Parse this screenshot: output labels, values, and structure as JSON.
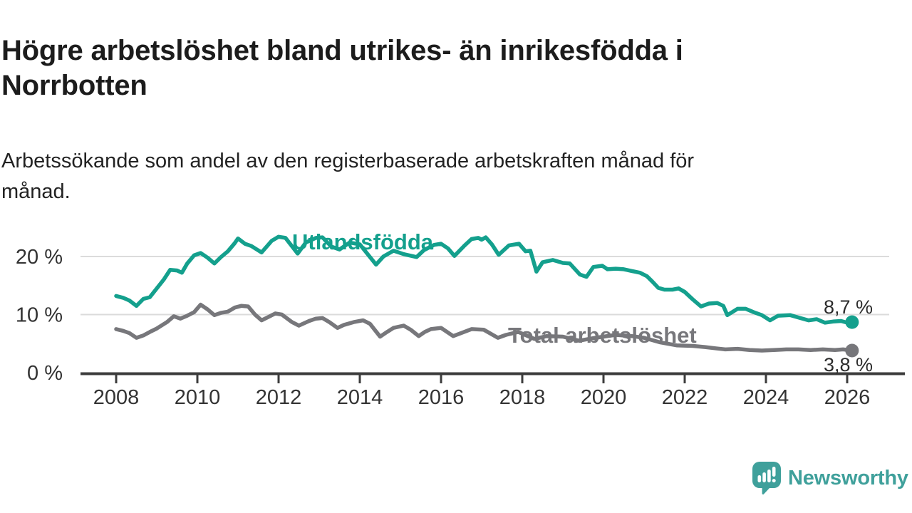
{
  "header": {
    "title": "Högre arbetslöshet bland utrikes- än inrikesfödda i Norrbotten",
    "title_lines": [
      "Högre arbetslöshet bland utrikes- än inrikesfödda i",
      "Norrbotten"
    ],
    "subtitle": "Arbetssökande som andel av den registerbaserade arbetskraften månad för månad.",
    "subtitle_lines": [
      "Arbetssökande som andel av den registerbaserade arbetskraften månad för",
      "månad."
    ]
  },
  "footer": {
    "brand": "Newsworthy",
    "logo_icon": "speech-bubble-bar-chart-icon",
    "brand_color": "#3FA09B"
  },
  "colors": {
    "utlandsfodda": "#14A08D",
    "total": "#77777B",
    "grid": "#DBDBDB",
    "axis": "#3C3C3C",
    "tick_text": "#333333",
    "value_label": "#2B2B2B",
    "background": "#FFFFFF"
  },
  "chart_data": {
    "type": "line",
    "title": "Högre arbetslöshet bland utrikes- än inrikesfödda i Norrbotten",
    "xlabel": "",
    "ylabel": "",
    "x_unit": "year (monthly observations)",
    "y_unit": "percent of registered labour force",
    "x_range": [
      2008,
      2026.3
    ],
    "ylim": [
      0,
      25
    ],
    "grid": "horizontal-only",
    "legend_position": "inline-on-line",
    "x_ticks": {
      "values": [
        2008,
        2010,
        2012,
        2014,
        2016,
        2018,
        2020,
        2022,
        2024,
        2026
      ],
      "labels": [
        "2008",
        "2010",
        "2012",
        "2014",
        "2016",
        "2018",
        "2020",
        "2022",
        "2024",
        "2026"
      ]
    },
    "y_ticks": {
      "values": [
        0,
        10,
        20
      ],
      "labels": [
        "0 %",
        "10 %",
        "20 %"
      ]
    },
    "grid_values": [
      10,
      20
    ],
    "series": [
      {
        "name": "Utlandsfödda",
        "color": "#14A08D",
        "end_value": 8.7,
        "end_label": "8,7 %",
        "points": [
          [
            2008.0,
            13.2
          ],
          [
            2008.17,
            12.9
          ],
          [
            2008.33,
            12.4
          ],
          [
            2008.5,
            11.5
          ],
          [
            2008.67,
            12.7
          ],
          [
            2008.83,
            13.0
          ],
          [
            2009.0,
            14.5
          ],
          [
            2009.17,
            16.0
          ],
          [
            2009.33,
            17.7
          ],
          [
            2009.5,
            17.6
          ],
          [
            2009.62,
            17.2
          ],
          [
            2009.75,
            18.8
          ],
          [
            2009.92,
            20.2
          ],
          [
            2010.08,
            20.6
          ],
          [
            2010.25,
            19.8
          ],
          [
            2010.42,
            18.8
          ],
          [
            2010.58,
            19.9
          ],
          [
            2010.75,
            20.9
          ],
          [
            2010.92,
            22.3
          ],
          [
            2011.0,
            23.1
          ],
          [
            2011.17,
            22.2
          ],
          [
            2011.33,
            21.8
          ],
          [
            2011.58,
            20.7
          ],
          [
            2011.83,
            22.7
          ],
          [
            2012.0,
            23.4
          ],
          [
            2012.17,
            23.2
          ],
          [
            2012.47,
            20.5
          ],
          [
            2012.67,
            22.4
          ],
          [
            2012.92,
            23.2
          ],
          [
            2013.08,
            23.3
          ],
          [
            2013.3,
            21.7
          ],
          [
            2013.5,
            21.2
          ],
          [
            2013.75,
            22.4
          ],
          [
            2014.0,
            22.1
          ],
          [
            2014.17,
            20.6
          ],
          [
            2014.4,
            18.6
          ],
          [
            2014.58,
            20.0
          ],
          [
            2014.83,
            21.0
          ],
          [
            2015.08,
            20.4
          ],
          [
            2015.4,
            19.9
          ],
          [
            2015.58,
            21.1
          ],
          [
            2015.83,
            22.0
          ],
          [
            2016.0,
            22.2
          ],
          [
            2016.17,
            21.4
          ],
          [
            2016.33,
            20.1
          ],
          [
            2016.58,
            21.9
          ],
          [
            2016.75,
            23.0
          ],
          [
            2016.92,
            23.2
          ],
          [
            2017.0,
            22.9
          ],
          [
            2017.1,
            23.3
          ],
          [
            2017.25,
            22.1
          ],
          [
            2017.42,
            20.3
          ],
          [
            2017.67,
            21.9
          ],
          [
            2017.92,
            22.2
          ],
          [
            2018.08,
            20.9
          ],
          [
            2018.2,
            21.0
          ],
          [
            2018.35,
            17.4
          ],
          [
            2018.5,
            19.0
          ],
          [
            2018.75,
            19.4
          ],
          [
            2019.0,
            18.9
          ],
          [
            2019.17,
            18.8
          ],
          [
            2019.42,
            16.9
          ],
          [
            2019.58,
            16.5
          ],
          [
            2019.75,
            18.2
          ],
          [
            2019.97,
            18.4
          ],
          [
            2020.1,
            17.8
          ],
          [
            2020.3,
            17.9
          ],
          [
            2020.5,
            17.8
          ],
          [
            2020.7,
            17.5
          ],
          [
            2020.9,
            17.2
          ],
          [
            2021.07,
            16.6
          ],
          [
            2021.2,
            15.7
          ],
          [
            2021.35,
            14.6
          ],
          [
            2021.5,
            14.3
          ],
          [
            2021.7,
            14.3
          ],
          [
            2021.85,
            14.5
          ],
          [
            2022.0,
            13.9
          ],
          [
            2022.2,
            12.6
          ],
          [
            2022.4,
            11.4
          ],
          [
            2022.6,
            11.9
          ],
          [
            2022.8,
            12.0
          ],
          [
            2022.95,
            11.5
          ],
          [
            2023.05,
            9.9
          ],
          [
            2023.3,
            11.0
          ],
          [
            2023.5,
            11.0
          ],
          [
            2023.7,
            10.4
          ],
          [
            2023.9,
            9.9
          ],
          [
            2024.1,
            9.0
          ],
          [
            2024.3,
            9.8
          ],
          [
            2024.6,
            9.9
          ],
          [
            2024.8,
            9.5
          ],
          [
            2025.05,
            9.0
          ],
          [
            2025.25,
            9.2
          ],
          [
            2025.45,
            8.6
          ],
          [
            2025.65,
            8.8
          ],
          [
            2025.85,
            8.9
          ],
          [
            2026.0,
            8.6
          ],
          [
            2026.12,
            8.7
          ]
        ]
      },
      {
        "name": "Total arbetslöshet",
        "color": "#77777B",
        "end_value": 3.8,
        "end_label": "3,8 %",
        "points": [
          [
            2008.0,
            7.5
          ],
          [
            2008.17,
            7.2
          ],
          [
            2008.33,
            6.8
          ],
          [
            2008.5,
            6.0
          ],
          [
            2008.67,
            6.4
          ],
          [
            2008.83,
            7.0
          ],
          [
            2009.0,
            7.6
          ],
          [
            2009.25,
            8.7
          ],
          [
            2009.42,
            9.7
          ],
          [
            2009.58,
            9.3
          ],
          [
            2009.75,
            9.8
          ],
          [
            2009.92,
            10.4
          ],
          [
            2010.08,
            11.7
          ],
          [
            2010.25,
            10.9
          ],
          [
            2010.42,
            9.9
          ],
          [
            2010.58,
            10.3
          ],
          [
            2010.75,
            10.5
          ],
          [
            2010.92,
            11.2
          ],
          [
            2011.08,
            11.5
          ],
          [
            2011.25,
            11.4
          ],
          [
            2011.42,
            10.0
          ],
          [
            2011.58,
            9.0
          ],
          [
            2011.75,
            9.6
          ],
          [
            2011.92,
            10.2
          ],
          [
            2012.08,
            10.0
          ],
          [
            2012.33,
            8.7
          ],
          [
            2012.5,
            8.1
          ],
          [
            2012.75,
            8.9
          ],
          [
            2012.92,
            9.3
          ],
          [
            2013.08,
            9.4
          ],
          [
            2013.25,
            8.7
          ],
          [
            2013.45,
            7.7
          ],
          [
            2013.6,
            8.2
          ],
          [
            2013.85,
            8.7
          ],
          [
            2014.08,
            9.0
          ],
          [
            2014.25,
            8.4
          ],
          [
            2014.5,
            6.2
          ],
          [
            2014.67,
            7.0
          ],
          [
            2014.83,
            7.7
          ],
          [
            2015.08,
            8.1
          ],
          [
            2015.25,
            7.4
          ],
          [
            2015.45,
            6.3
          ],
          [
            2015.6,
            7.0
          ],
          [
            2015.75,
            7.5
          ],
          [
            2016.0,
            7.7
          ],
          [
            2016.3,
            6.3
          ],
          [
            2016.75,
            7.5
          ],
          [
            2017.05,
            7.4
          ],
          [
            2017.4,
            6.0
          ],
          [
            2017.6,
            6.5
          ],
          [
            2017.9,
            7.0
          ],
          [
            2018.3,
            5.8
          ],
          [
            2018.6,
            6.3
          ],
          [
            2019.0,
            6.2
          ],
          [
            2019.4,
            5.5
          ],
          [
            2019.8,
            6.0
          ],
          [
            2020.3,
            6.5
          ],
          [
            2020.7,
            6.3
          ],
          [
            2021.0,
            6.0
          ],
          [
            2021.4,
            5.2
          ],
          [
            2021.8,
            4.7
          ],
          [
            2022.2,
            4.6
          ],
          [
            2022.5,
            4.4
          ],
          [
            2022.75,
            4.2
          ],
          [
            2023.0,
            4.0
          ],
          [
            2023.3,
            4.1
          ],
          [
            2023.6,
            3.9
          ],
          [
            2023.9,
            3.8
          ],
          [
            2024.2,
            3.9
          ],
          [
            2024.5,
            4.0
          ],
          [
            2024.8,
            4.0
          ],
          [
            2025.1,
            3.9
          ],
          [
            2025.4,
            4.0
          ],
          [
            2025.7,
            3.9
          ],
          [
            2025.9,
            4.0
          ],
          [
            2026.12,
            3.8
          ]
        ]
      }
    ]
  }
}
